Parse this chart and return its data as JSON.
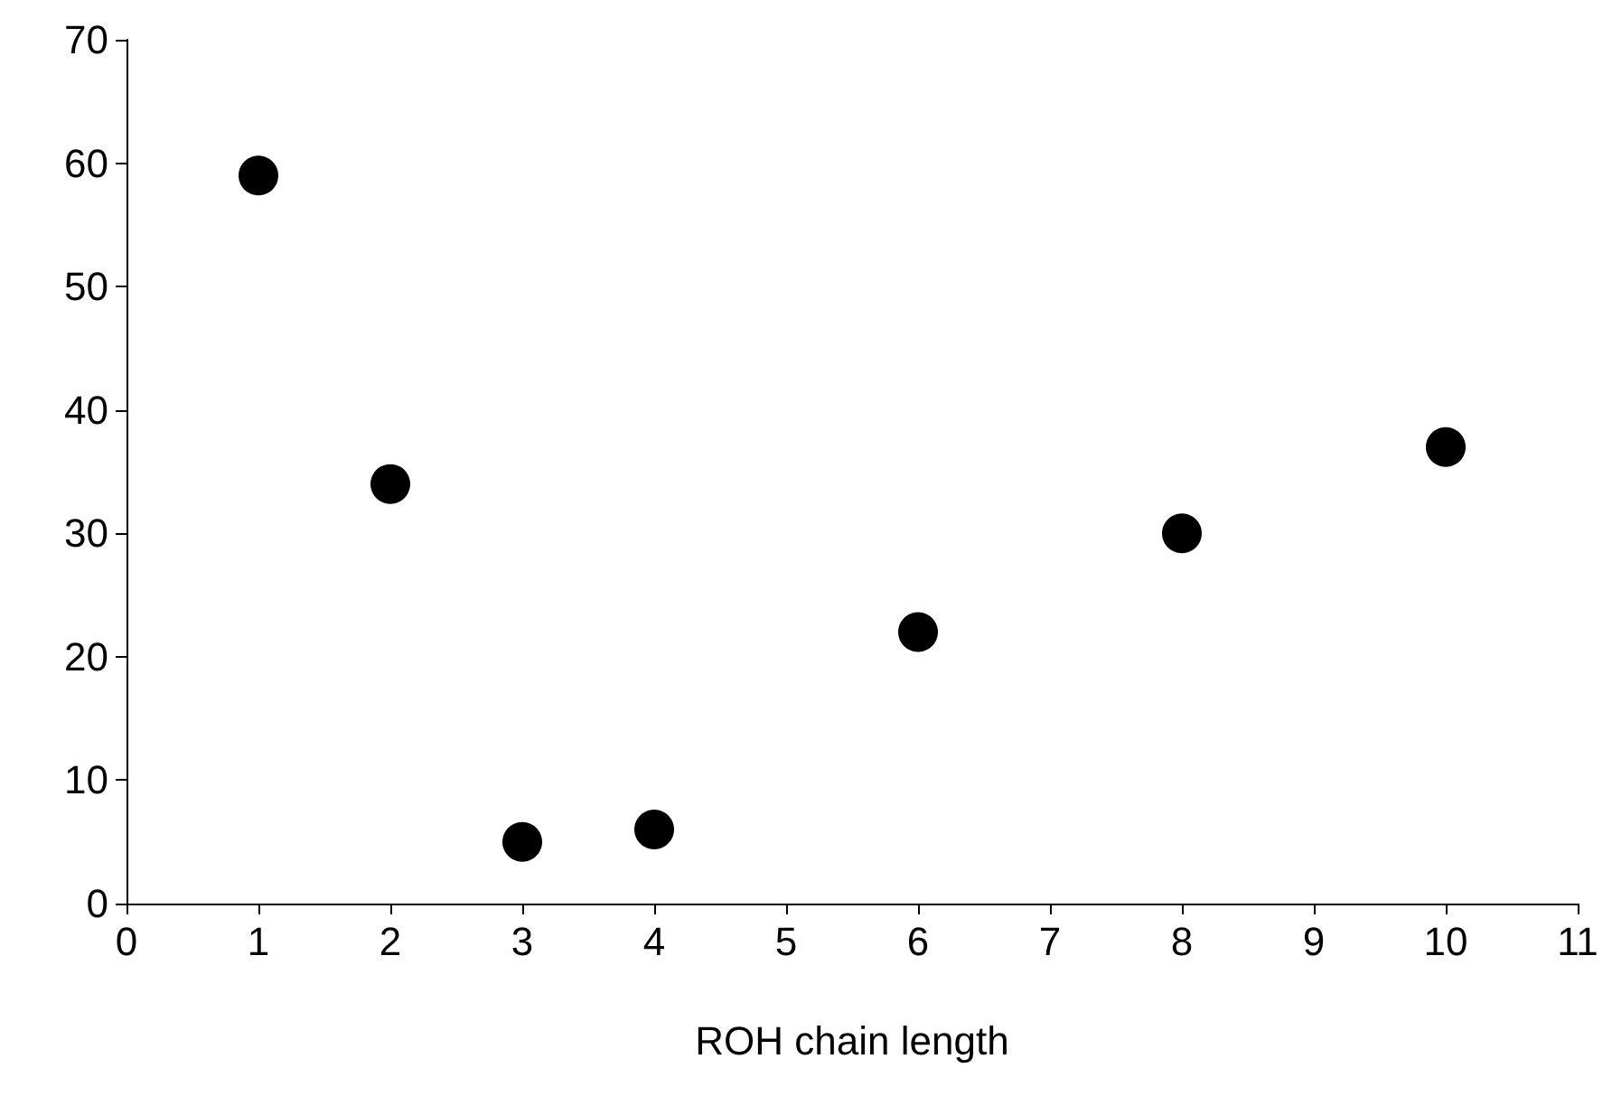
{
  "chart_data": {
    "type": "scatter",
    "xlabel": "ROH chain length",
    "x": [
      1,
      2,
      3,
      4,
      6,
      8,
      10
    ],
    "series": [
      {
        "color": "#000000",
        "values": [
          59,
          34,
          5,
          6,
          22,
          30,
          37
        ]
      }
    ],
    "xlim": [
      0,
      11
    ],
    "xticks": [
      0,
      1,
      2,
      3,
      4,
      5,
      6,
      7,
      8,
      9,
      10,
      11
    ],
    "ylim": [
      0,
      70
    ],
    "yticks": [
      0,
      10,
      20,
      30,
      40,
      50,
      60,
      70
    ],
    "grid": false,
    "marker": "circle"
  }
}
